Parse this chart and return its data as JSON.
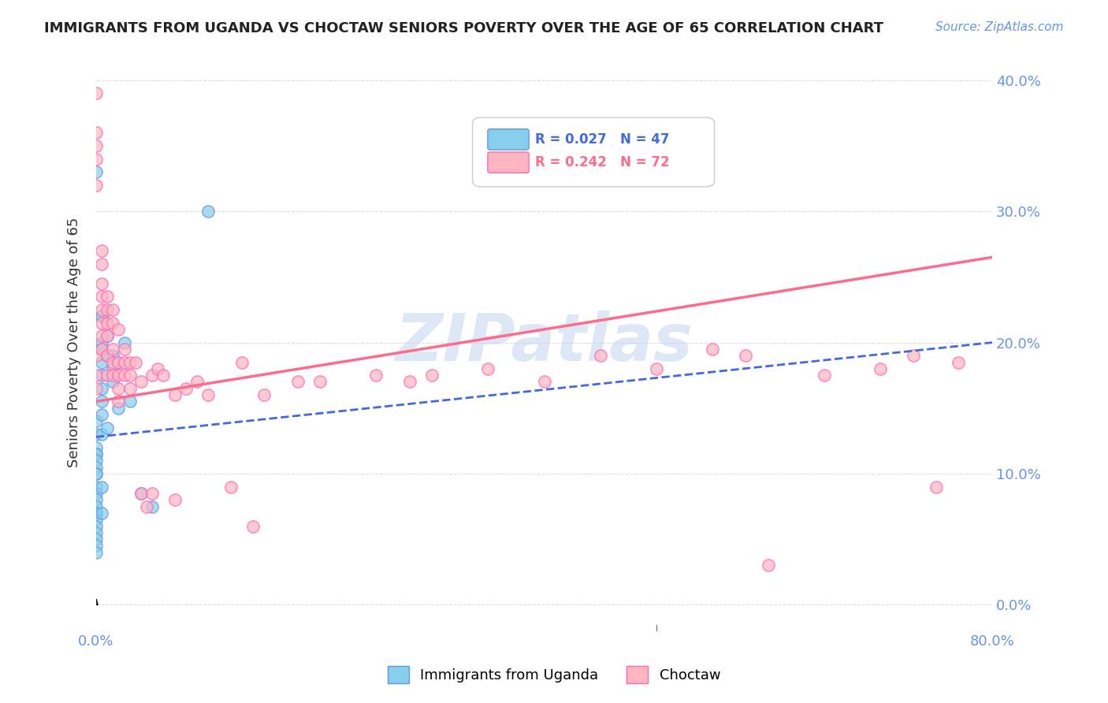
{
  "title": "IMMIGRANTS FROM UGANDA VS CHOCTAW SENIORS POVERTY OVER THE AGE OF 65 CORRELATION CHART",
  "source": "Source: ZipAtlas.com",
  "xlabel": "",
  "ylabel": "Seniors Poverty Over the Age of 65",
  "xlim": [
    0,
    0.8
  ],
  "ylim": [
    -0.02,
    0.42
  ],
  "yticks": [
    0.0,
    0.1,
    0.2,
    0.3,
    0.4
  ],
  "xticks": [
    0.0,
    0.2,
    0.4,
    0.6,
    0.8
  ],
  "xtick_labels": [
    "0.0%",
    "",
    "",
    "",
    "80.0%"
  ],
  "ytick_labels_right": [
    "",
    "10.0%",
    "20.0%",
    "30.0%",
    "40.0%"
  ],
  "legend_r1": "R = 0.027",
  "legend_n1": "N = 47",
  "legend_r2": "R = 0.242",
  "legend_n2": "N = 72",
  "color_uganda": "#87CEEB",
  "color_choctaw": "#FFB6C1",
  "color_uganda_dark": "#6495ED",
  "color_choctaw_dark": "#FF69B4",
  "color_line_uganda": "#4169E1",
  "color_line_choctaw": "#FF6B8A",
  "color_axis_labels": "#6495ED",
  "watermark": "ZIPatlas",
  "watermark_color": "#C8D8F0",
  "uganda_x": [
    0.0,
    0.0,
    0.0,
    0.0,
    0.0,
    0.0,
    0.0,
    0.0,
    0.0,
    0.0,
    0.0,
    0.0,
    0.0,
    0.0,
    0.0,
    0.0,
    0.0,
    0.0,
    0.0,
    0.0,
    0.0,
    0.0,
    0.005,
    0.005,
    0.005,
    0.005,
    0.005,
    0.005,
    0.005,
    0.005,
    0.005,
    0.005,
    0.005,
    0.005,
    0.01,
    0.01,
    0.01,
    0.015,
    0.015,
    0.015,
    0.02,
    0.02,
    0.025,
    0.03,
    0.04,
    0.05,
    0.1
  ],
  "uganda_y": [
    0.33,
    0.14,
    0.13,
    0.12,
    0.115,
    0.115,
    0.11,
    0.105,
    0.1,
    0.1,
    0.09,
    0.085,
    0.08,
    0.075,
    0.07,
    0.07,
    0.065,
    0.06,
    0.055,
    0.05,
    0.045,
    0.04,
    0.22,
    0.22,
    0.2,
    0.195,
    0.185,
    0.175,
    0.165,
    0.155,
    0.145,
    0.13,
    0.09,
    0.07,
    0.205,
    0.19,
    0.135,
    0.19,
    0.18,
    0.17,
    0.185,
    0.15,
    0.2,
    0.155,
    0.085,
    0.075,
    0.3
  ],
  "choctaw_x": [
    0.0,
    0.0,
    0.0,
    0.0,
    0.0,
    0.0,
    0.0,
    0.0,
    0.005,
    0.005,
    0.005,
    0.005,
    0.005,
    0.005,
    0.005,
    0.005,
    0.01,
    0.01,
    0.01,
    0.01,
    0.01,
    0.01,
    0.015,
    0.015,
    0.015,
    0.015,
    0.015,
    0.02,
    0.02,
    0.02,
    0.02,
    0.02,
    0.025,
    0.025,
    0.025,
    0.03,
    0.03,
    0.03,
    0.035,
    0.04,
    0.04,
    0.045,
    0.05,
    0.05,
    0.055,
    0.06,
    0.07,
    0.07,
    0.08,
    0.09,
    0.1,
    0.12,
    0.13,
    0.14,
    0.15,
    0.18,
    0.2,
    0.25,
    0.28,
    0.3,
    0.35,
    0.4,
    0.45,
    0.5,
    0.55,
    0.58,
    0.6,
    0.65,
    0.7,
    0.73,
    0.75,
    0.77
  ],
  "choctaw_y": [
    0.39,
    0.36,
    0.35,
    0.34,
    0.32,
    0.19,
    0.175,
    0.165,
    0.27,
    0.26,
    0.245,
    0.235,
    0.225,
    0.215,
    0.205,
    0.195,
    0.235,
    0.225,
    0.215,
    0.205,
    0.19,
    0.175,
    0.225,
    0.215,
    0.195,
    0.185,
    0.175,
    0.21,
    0.185,
    0.175,
    0.165,
    0.155,
    0.195,
    0.185,
    0.175,
    0.185,
    0.175,
    0.165,
    0.185,
    0.17,
    0.085,
    0.075,
    0.175,
    0.085,
    0.18,
    0.175,
    0.16,
    0.08,
    0.165,
    0.17,
    0.16,
    0.09,
    0.185,
    0.06,
    0.16,
    0.17,
    0.17,
    0.175,
    0.17,
    0.175,
    0.18,
    0.17,
    0.19,
    0.18,
    0.195,
    0.19,
    0.03,
    0.175,
    0.18,
    0.19,
    0.09,
    0.185
  ],
  "uganda_trend_x": [
    0.0,
    0.8
  ],
  "uganda_trend_y": [
    0.128,
    0.2
  ],
  "choctaw_trend_x": [
    0.0,
    0.8
  ],
  "choctaw_trend_y": [
    0.155,
    0.265
  ]
}
